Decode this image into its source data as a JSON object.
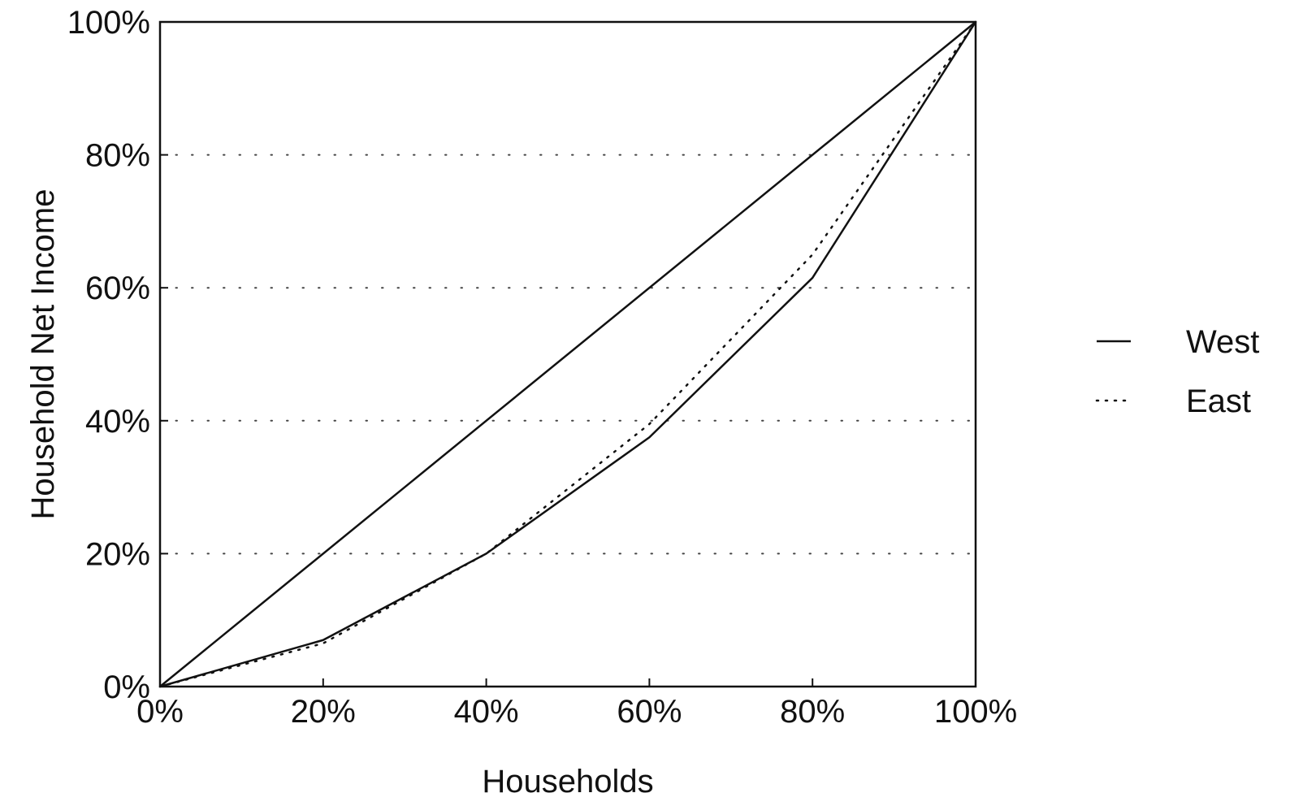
{
  "chart_data": {
    "type": "line",
    "title": "",
    "xlabel": "Households",
    "ylabel": "Household Net Income",
    "xlim": [
      0,
      100
    ],
    "ylim": [
      0,
      100
    ],
    "x_ticks": [
      0,
      20,
      40,
      60,
      80,
      100
    ],
    "x_tick_labels": [
      "0%",
      "20%",
      "40%",
      "60%",
      "80%",
      "100%"
    ],
    "y_ticks": [
      0,
      20,
      40,
      60,
      80,
      100
    ],
    "y_tick_labels": [
      "0%",
      "20%",
      "40%",
      "60%",
      "80%",
      "100%"
    ],
    "grid": {
      "y": true,
      "x": false,
      "style": "dotted"
    },
    "legend": {
      "position": "right"
    },
    "equality_line": {
      "x": [
        0,
        100
      ],
      "y": [
        0,
        100
      ]
    },
    "series": [
      {
        "name": "West",
        "style": "solid",
        "x": [
          0,
          20,
          40,
          60,
          80,
          100
        ],
        "y": [
          0,
          7,
          20,
          37.5,
          61.5,
          100
        ]
      },
      {
        "name": "East",
        "style": "dotted",
        "x": [
          0,
          20,
          40,
          60,
          80,
          100
        ],
        "y": [
          0,
          6.5,
          20,
          39.5,
          65,
          100
        ]
      }
    ]
  }
}
